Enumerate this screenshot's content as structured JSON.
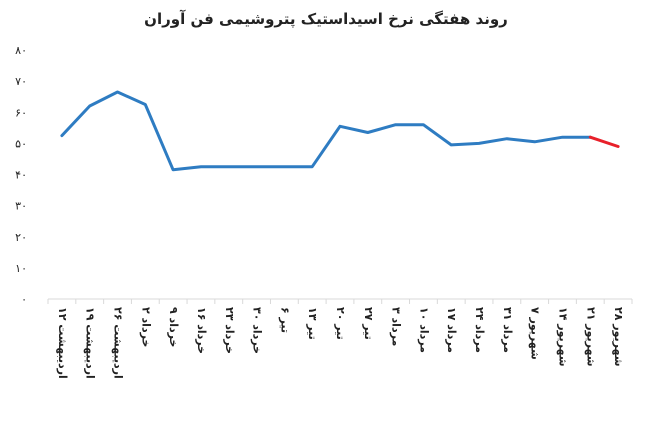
{
  "chart_data": {
    "type": "line",
    "title": "روند هفتگی نرخ اسیداستیک پتروشیمی فن آوران",
    "xlabel": "",
    "ylabel": "",
    "ylim": [
      0,
      80
    ],
    "yticks": [
      "۰",
      "۱۰",
      "۲۰",
      "۳۰",
      "۴۰",
      "۵۰",
      "۶۰",
      "۷۰",
      "۸۰"
    ],
    "grid": false,
    "categories": [
      "۱۲ اردیبهشت",
      "۱۹ اردیبهشت",
      "۲۶ اردیبهشت",
      "۲ خرداد",
      "۹ خرداد",
      "۱۶ خرداد",
      "۲۳ خرداد",
      "۳۰ خرداد",
      "۶ تیر",
      "۱۳ تیر",
      "۲۰ تیر",
      "۲۷ تیر",
      "۳ مرداد",
      "۱۰ مرداد",
      "۱۷ مرداد",
      "۲۴ مرداد",
      "۳۱ مرداد",
      "۷ شهریور",
      "۱۴ شهریور",
      "۲۱ شهریور",
      "۲۸ شهریور"
    ],
    "values": [
      52.5,
      62,
      66.5,
      62.5,
      41.5,
      42.5,
      42.5,
      42.5,
      42.5,
      42.5,
      55.5,
      53.5,
      56,
      56,
      49.5,
      50,
      51.5,
      50.5,
      52,
      52,
      49
    ],
    "colors": {
      "line": "#2e7cc2",
      "last_segment": "#e8202a",
      "axis": "#d9d9d9",
      "text": "#222222"
    }
  }
}
